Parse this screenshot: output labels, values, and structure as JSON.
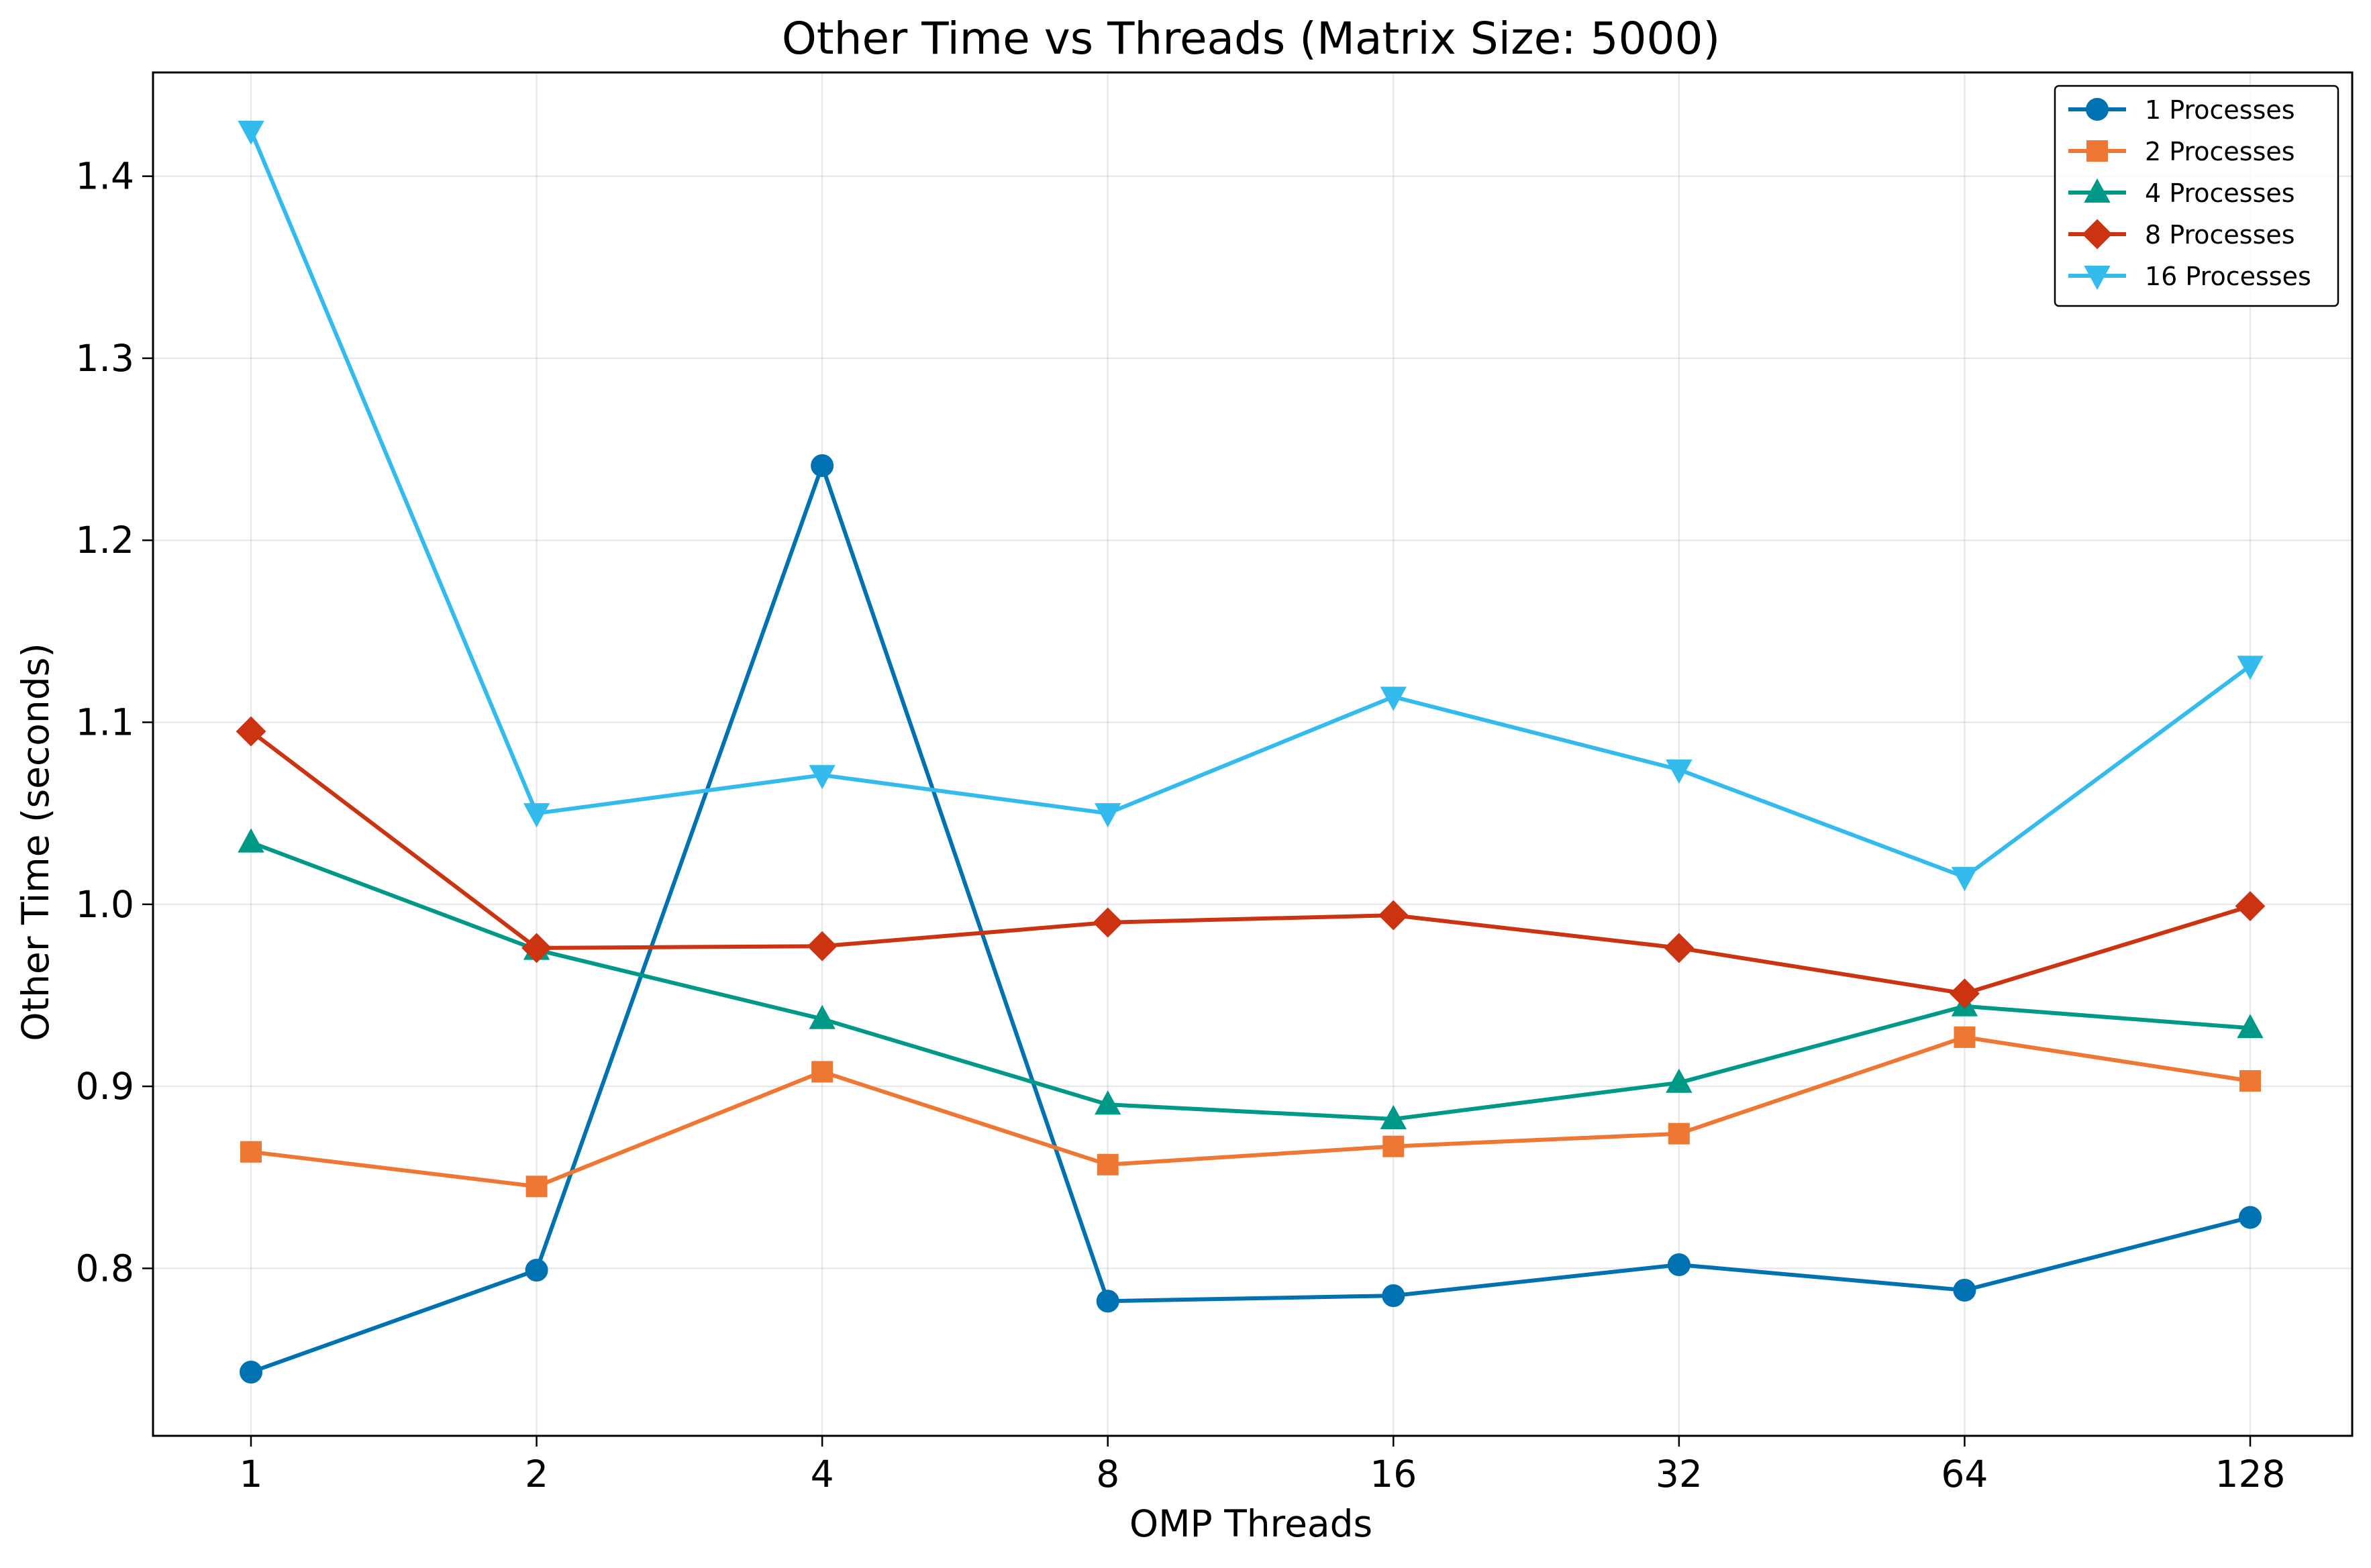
{
  "chart_data": {
    "type": "line",
    "title": "Other Time vs Threads (Matrix Size: 5000)",
    "xlabel": "OMP Threads",
    "ylabel": "Other Time (seconds)",
    "x_scale": "log2",
    "categories": [
      "1",
      "2",
      "4",
      "8",
      "16",
      "32",
      "64",
      "128"
    ],
    "x": [
      1,
      2,
      4,
      8,
      16,
      32,
      64,
      128
    ],
    "ylim": [
      0.708,
      1.457
    ],
    "yticks": [
      0.8,
      0.9,
      1.0,
      1.1,
      1.2,
      1.3,
      1.4
    ],
    "ytick_labels": [
      "0.8",
      "0.9",
      "1.0",
      "1.1",
      "1.2",
      "1.3",
      "1.4"
    ],
    "grid": true,
    "legend_position": "top-right",
    "series": [
      {
        "name": "1 Processes",
        "color": "#0072B2",
        "marker": "circle",
        "values": [
          0.743,
          0.799,
          1.241,
          0.782,
          0.785,
          0.802,
          0.788,
          0.828
        ]
      },
      {
        "name": "2 Processes",
        "color": "#EE7733",
        "marker": "square",
        "values": [
          0.864,
          0.845,
          0.908,
          0.857,
          0.867,
          0.874,
          0.927,
          0.903
        ]
      },
      {
        "name": "4 Processes",
        "color": "#009988",
        "marker": "triangle-up",
        "values": [
          1.034,
          0.975,
          0.937,
          0.89,
          0.882,
          0.902,
          0.944,
          0.932
        ]
      },
      {
        "name": "8 Processes",
        "color": "#CC3311",
        "marker": "diamond",
        "values": [
          1.095,
          0.976,
          0.977,
          0.99,
          0.994,
          0.976,
          0.951,
          0.999
        ]
      },
      {
        "name": "16 Processes",
        "color": "#33BBEE",
        "marker": "triangle-down",
        "values": [
          1.425,
          1.05,
          1.071,
          1.05,
          1.114,
          1.074,
          1.015,
          1.131
        ]
      }
    ]
  }
}
